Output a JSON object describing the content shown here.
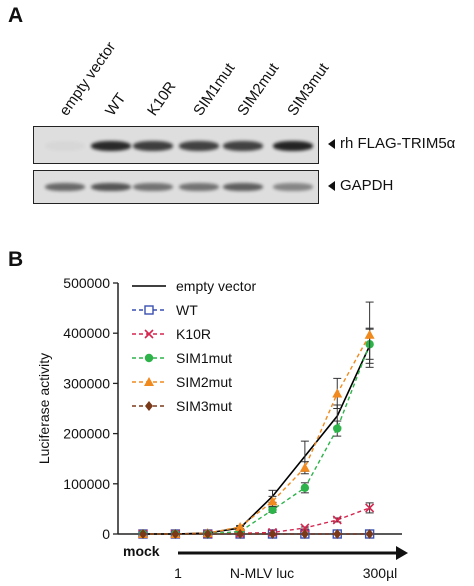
{
  "panelA": {
    "letter": "A",
    "lanes": [
      "empty vector",
      "WT",
      "K10R",
      "SIM1mut",
      "SIM2mut",
      "SIM3mut"
    ],
    "blots": [
      {
        "label": "rh FLAG-TRIM5α",
        "intensities": [
          0.03,
          0.92,
          0.82,
          0.8,
          0.8,
          0.95
        ],
        "band_color": "#1a1a1a",
        "bg": "#dedede"
      },
      {
        "label": "GAPDH",
        "intensities": [
          0.6,
          0.7,
          0.55,
          0.55,
          0.65,
          0.45
        ],
        "band_color": "#1a1a1a",
        "bg": "#dedede"
      }
    ]
  },
  "panelB": {
    "letter": "B",
    "xaxis_left": "mock",
    "xaxis_arrow_start": "1",
    "xaxis_arrow_mid": "N-MLV luc",
    "xaxis_arrow_end": "300µl"
  },
  "chart_data": {
    "type": "line",
    "title": "",
    "xlabel": "",
    "ylabel": "Luciferase activity",
    "ylim": [
      0,
      500000
    ],
    "yticks": [
      0,
      100000,
      200000,
      300000,
      400000,
      500000
    ],
    "ytick_labels": [
      "0",
      "100000",
      "200000",
      "300000",
      "400000",
      "500000"
    ],
    "x_points": 9,
    "legend_position": "top-left",
    "series": [
      {
        "name": "empty vector",
        "color": "#000000",
        "dash": "",
        "marker": "none",
        "values": [
          0,
          0,
          2000,
          12000,
          75000,
          155000,
          235000,
          375000,
          null
        ],
        "errors": [
          0,
          0,
          0,
          3000,
          12000,
          30000,
          22000,
          35000,
          null
        ]
      },
      {
        "name": "WT",
        "color": "#3a4fb0",
        "dash": "4,3",
        "marker": "open-square",
        "values": [
          0,
          0,
          0,
          0,
          0,
          0,
          0,
          0,
          null
        ],
        "errors": [
          0,
          0,
          0,
          0,
          0,
          0,
          0,
          0,
          null
        ]
      },
      {
        "name": "K10R",
        "color": "#d6264f",
        "dash": "4,3",
        "marker": "x",
        "values": [
          0,
          0,
          0,
          1500,
          3000,
          12000,
          28000,
          52000,
          null
        ],
        "errors": [
          0,
          0,
          0,
          0,
          0,
          2000,
          4000,
          10000,
          null
        ]
      },
      {
        "name": "SIM1mut",
        "color": "#2db34a",
        "dash": "4,3",
        "marker": "circle",
        "values": [
          0,
          0,
          0,
          5000,
          48000,
          92000,
          210000,
          378000,
          null
        ],
        "errors": [
          0,
          0,
          0,
          0,
          5000,
          10000,
          15000,
          30000,
          null
        ]
      },
      {
        "name": "SIM2mut",
        "color": "#f08a1e",
        "dash": "4,3",
        "marker": "triangle",
        "values": [
          0,
          0,
          2000,
          14000,
          65000,
          132000,
          280000,
          397000,
          null
        ],
        "errors": [
          0,
          0,
          0,
          3000,
          10000,
          12000,
          30000,
          65000,
          null
        ]
      },
      {
        "name": "SIM3mut",
        "color": "#7a3a1a",
        "dash": "4,3",
        "marker": "diamond",
        "values": [
          0,
          0,
          0,
          0,
          0,
          0,
          0,
          0,
          null
        ],
        "errors": [
          0,
          0,
          0,
          0,
          0,
          0,
          0,
          0,
          null
        ]
      }
    ]
  }
}
